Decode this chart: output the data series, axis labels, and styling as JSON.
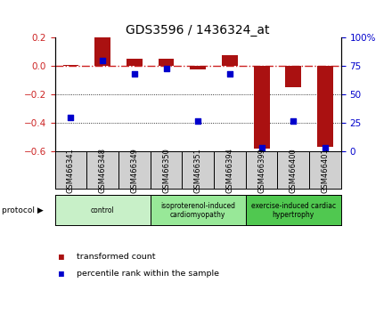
{
  "title": "GDS3596 / 1436324_at",
  "samples": [
    "GSM466341",
    "GSM466348",
    "GSM466349",
    "GSM466350",
    "GSM466351",
    "GSM466394",
    "GSM466399",
    "GSM466400",
    "GSM466401"
  ],
  "transformed_count": [
    0.01,
    0.2,
    0.05,
    0.055,
    -0.02,
    0.08,
    -0.58,
    -0.15,
    -0.57
  ],
  "percentile_rank": [
    30,
    80,
    68,
    73,
    27,
    68,
    3,
    27,
    3
  ],
  "groups": [
    {
      "label": "control",
      "samples": [
        0,
        1,
        2
      ],
      "color": "#c8f0c8"
    },
    {
      "label": "isoproterenol-induced\ncardiomyopathy",
      "samples": [
        3,
        4,
        5
      ],
      "color": "#98e898"
    },
    {
      "label": "exercise-induced cardiac\nhypertrophy",
      "samples": [
        6,
        7,
        8
      ],
      "color": "#50c850"
    }
  ],
  "bar_color": "#aa1111",
  "dot_color": "#0000cc",
  "dashed_line_color": "#cc2222",
  "ylim_left": [
    -0.6,
    0.2
  ],
  "ylim_right": [
    0,
    100
  ],
  "yticks_left": [
    -0.6,
    -0.4,
    -0.2,
    0.0,
    0.2
  ],
  "yticks_right": [
    0,
    25,
    50,
    75,
    100
  ],
  "ytick_labels_right": [
    "0",
    "25",
    "50",
    "75",
    "100%"
  ],
  "grid_yticks": [
    -0.4,
    -0.2
  ],
  "background_color": "#ffffff",
  "bar_width": 0.5,
  "label_bg_color": "#d0d0d0"
}
